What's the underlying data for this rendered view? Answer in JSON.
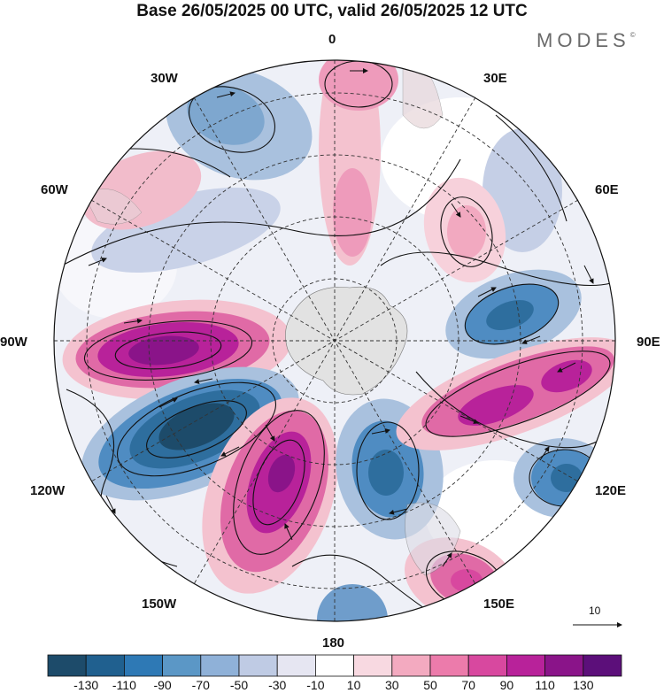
{
  "title": "Base 26/05/2025 00 UTC, valid 26/05/2025 12 UTC",
  "brand": "MODES",
  "brand_mark": "©",
  "map": {
    "projection": "south-polar-stereographic",
    "meridian_labels": [
      "0",
      "30E",
      "60E",
      "90E",
      "120E",
      "150E",
      "180",
      "150W",
      "120W",
      "90W",
      "60W",
      "30W"
    ],
    "streamlines": true,
    "coastlines": true
  },
  "colors": {
    "neg_strong": "#1f4e6e",
    "neg_mid": "#3f7fb2",
    "neg_light": "#a9c1de",
    "neutral": "#ffffff",
    "pos_light": "#f4c2cf",
    "pos_mid": "#e06aa6",
    "pos_strong": "#8c1a8c",
    "land": "#e2e2e2"
  },
  "vector_key": {
    "label": "10"
  },
  "colorbar": {
    "labels": [
      "-130",
      "-110",
      "-90",
      "-70",
      "-50",
      "-30",
      "-10",
      "10",
      "30",
      "50",
      "70",
      "90",
      "110",
      "130"
    ],
    "colors": [
      "#1d4b6a",
      "#20608f",
      "#2e79b5",
      "#5b97c6",
      "#8fb1d8",
      "#bfcbe4",
      "#e6e6f2",
      "#ffffff",
      "#f8d9e1",
      "#f3aac0",
      "#ec7bab",
      "#d8489f",
      "#b8229a",
      "#8a1489",
      "#5c0f7a"
    ]
  }
}
